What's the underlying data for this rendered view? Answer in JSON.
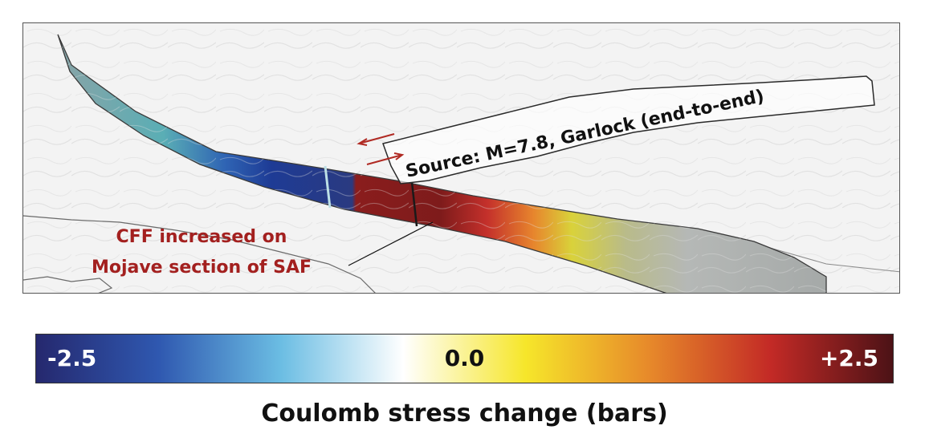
{
  "map": {
    "source_label": "Source: M=7.8, Garlock (end-to-end)",
    "callout_line1": "CFF increased on",
    "callout_line2": "Mojave section of SAF",
    "colors": {
      "callout_text": "#a3201f",
      "slip_arrows": "#b02a23",
      "background": "#f3f3f3"
    }
  },
  "colorbar": {
    "title": "Coulomb stress change (bars)",
    "min_label": "-2.5",
    "mid_label": "0.0",
    "max_label": "+2.5",
    "min_value": -2.5,
    "max_value": 2.5,
    "stops": [
      "#25286e",
      "#2f58b0",
      "#6bbde3",
      "#ffffff",
      "#f6e62a",
      "#e78a2a",
      "#c32a26",
      "#4c1216"
    ]
  }
}
